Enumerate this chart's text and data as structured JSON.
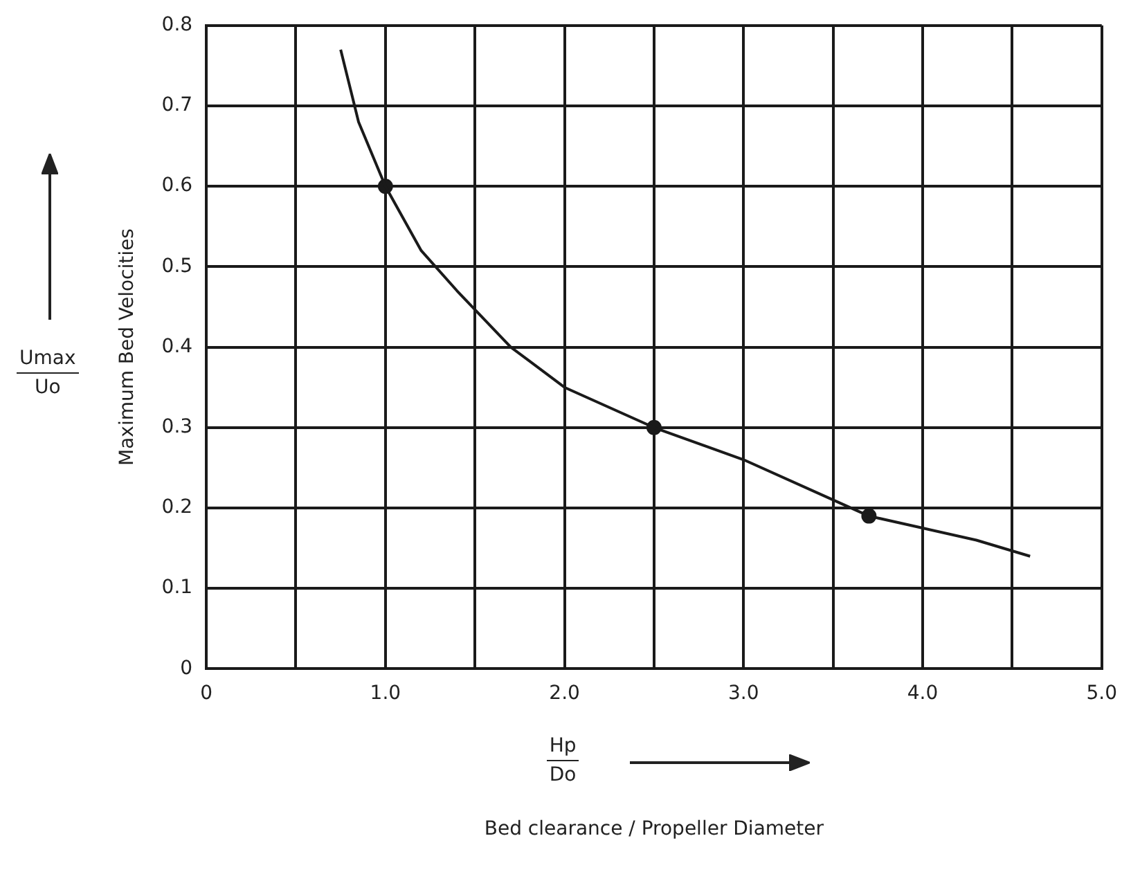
{
  "chart_data": {
    "type": "line",
    "ylabel": "Maximum Bed Velocities",
    "annotations": [
      "Umax",
      "Uo",
      "Hp",
      "Do",
      "Bed clearance / Propeller Diameter"
    ],
    "series": [
      {
        "type": "line",
        "marker": "none",
        "color": "#1a1a1a",
        "x": [
          0.75,
          0.85,
          1.0,
          1.2,
          1.4,
          1.7,
          2.0,
          2.5,
          3.0,
          3.5,
          3.7,
          4.0,
          4.3,
          4.6
        ],
        "values": [
          0.77,
          0.68,
          0.6,
          0.52,
          0.47,
          0.4,
          0.35,
          0.3,
          0.26,
          0.21,
          0.19,
          0.175,
          0.16,
          0.14
        ]
      },
      {
        "type": "scatter",
        "marker": "circle",
        "color": "#1a1a1a",
        "x": [
          1.0,
          2.5,
          3.7
        ],
        "values": [
          0.6,
          0.3,
          0.19
        ]
      }
    ],
    "xlim": [
      0,
      5
    ],
    "xticks": [
      0,
      {
        "value": 0.5,
        "label": null
      },
      {
        "value": 1,
        "label": "1.0"
      },
      {
        "value": 1.5,
        "label": null
      },
      {
        "value": 2,
        "label": "2.0"
      },
      {
        "value": 2.5,
        "label": null
      },
      {
        "value": 3,
        "label": "3.0"
      },
      {
        "value": 3.5,
        "label": null
      },
      {
        "value": 4,
        "label": "4.0"
      },
      {
        "value": 4.5,
        "label": null
      },
      {
        "value": 5,
        "label": "5.0"
      }
    ],
    "ylim": [
      0,
      0.8
    ],
    "yticks": [
      0,
      0.1,
      0.2,
      0.3,
      0.4,
      0.5,
      0.6,
      0.7,
      0.8
    ],
    "grid": true,
    "legend": false
  }
}
